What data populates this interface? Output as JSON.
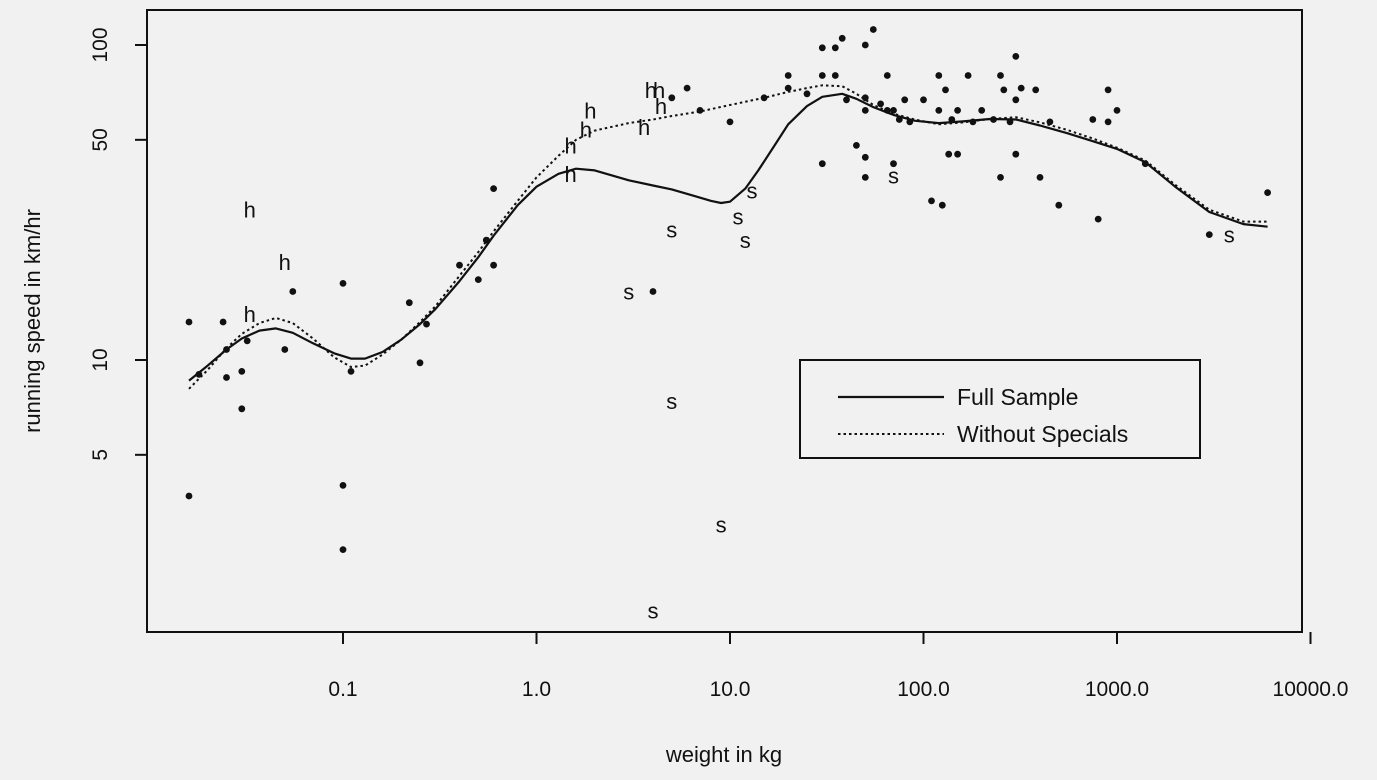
{
  "chart_data": {
    "type": "scatter",
    "title": "",
    "xlabel": "weight in kg",
    "ylabel": "running speed in km/hr",
    "xscale": "log",
    "yscale": "log",
    "xlim": [
      0.01,
      10000
    ],
    "ylim": [
      1.15,
      140
    ],
    "x_ticks": [
      0.1,
      1,
      10,
      100,
      1000,
      10000
    ],
    "x_tick_labels": [
      "0.1",
      "1.0",
      "10.0",
      "100.0",
      "1000.0",
      "10000.0"
    ],
    "y_ticks": [
      5,
      10,
      50,
      100
    ],
    "y_tick_labels": [
      "5",
      "10",
      "50",
      "100"
    ],
    "grid": false,
    "legend_position": "center-right",
    "legend": [
      {
        "label": "Full Sample",
        "style": "solid"
      },
      {
        "label": "Without Specials",
        "style": "dotted"
      }
    ],
    "points": [
      {
        "x": 0.016,
        "y": 13.2
      },
      {
        "x": 0.016,
        "y": 3.7
      },
      {
        "x": 0.018,
        "y": 9.0
      },
      {
        "x": 0.024,
        "y": 13.2
      },
      {
        "x": 0.025,
        "y": 10.8
      },
      {
        "x": 0.025,
        "y": 8.8
      },
      {
        "x": 0.03,
        "y": 9.2
      },
      {
        "x": 0.03,
        "y": 7.0
      },
      {
        "x": 0.032,
        "y": 11.5
      },
      {
        "x": 0.055,
        "y": 16.5
      },
      {
        "x": 0.05,
        "y": 10.8
      },
      {
        "x": 0.1,
        "y": 17.5
      },
      {
        "x": 0.1,
        "y": 4.0
      },
      {
        "x": 0.1,
        "y": 2.5
      },
      {
        "x": 0.11,
        "y": 9.2
      },
      {
        "x": 0.22,
        "y": 15.2
      },
      {
        "x": 0.25,
        "y": 9.8
      },
      {
        "x": 0.27,
        "y": 13.0
      },
      {
        "x": 0.4,
        "y": 20.0
      },
      {
        "x": 0.5,
        "y": 18.0
      },
      {
        "x": 0.55,
        "y": 24.0
      },
      {
        "x": 0.6,
        "y": 20.0
      },
      {
        "x": 0.6,
        "y": 35.0
      },
      {
        "x": 4.0,
        "y": 16.5
      },
      {
        "x": 5.0,
        "y": 68.0
      },
      {
        "x": 6.0,
        "y": 73.0
      },
      {
        "x": 7.0,
        "y": 62.0
      },
      {
        "x": 10.0,
        "y": 57.0
      },
      {
        "x": 15.0,
        "y": 68.0
      },
      {
        "x": 20.0,
        "y": 80.0
      },
      {
        "x": 20.0,
        "y": 73.0
      },
      {
        "x": 25.0,
        "y": 70.0
      },
      {
        "x": 30.0,
        "y": 98.0
      },
      {
        "x": 30.0,
        "y": 80.0
      },
      {
        "x": 30.0,
        "y": 42.0
      },
      {
        "x": 35.0,
        "y": 98.0
      },
      {
        "x": 35.0,
        "y": 80.0
      },
      {
        "x": 38.0,
        "y": 105.0
      },
      {
        "x": 40.0,
        "y": 67.0
      },
      {
        "x": 45.0,
        "y": 48.0
      },
      {
        "x": 50.0,
        "y": 100.0
      },
      {
        "x": 50.0,
        "y": 68.0
      },
      {
        "x": 50.0,
        "y": 62.0
      },
      {
        "x": 50.0,
        "y": 44.0
      },
      {
        "x": 50.0,
        "y": 38.0
      },
      {
        "x": 55.0,
        "y": 112.0
      },
      {
        "x": 60.0,
        "y": 65.0
      },
      {
        "x": 65.0,
        "y": 80.0
      },
      {
        "x": 65.0,
        "y": 62.0
      },
      {
        "x": 70.0,
        "y": 62.0
      },
      {
        "x": 70.0,
        "y": 42.0
      },
      {
        "x": 75.0,
        "y": 58.0
      },
      {
        "x": 80.0,
        "y": 67.0
      },
      {
        "x": 85.0,
        "y": 57.0
      },
      {
        "x": 100.0,
        "y": 67.0
      },
      {
        "x": 110.0,
        "y": 32.0
      },
      {
        "x": 120.0,
        "y": 80.0
      },
      {
        "x": 120.0,
        "y": 62.0
      },
      {
        "x": 125.0,
        "y": 31.0
      },
      {
        "x": 130.0,
        "y": 72.0
      },
      {
        "x": 135.0,
        "y": 45.0
      },
      {
        "x": 140.0,
        "y": 58.0
      },
      {
        "x": 150.0,
        "y": 62.0
      },
      {
        "x": 150.0,
        "y": 45.0
      },
      {
        "x": 170.0,
        "y": 80.0
      },
      {
        "x": 180.0,
        "y": 57.0
      },
      {
        "x": 200.0,
        "y": 62.0
      },
      {
        "x": 230.0,
        "y": 58.0
      },
      {
        "x": 250.0,
        "y": 80.0
      },
      {
        "x": 250.0,
        "y": 38.0
      },
      {
        "x": 260.0,
        "y": 72.0
      },
      {
        "x": 280.0,
        "y": 57.0
      },
      {
        "x": 300.0,
        "y": 92.0
      },
      {
        "x": 300.0,
        "y": 67.0
      },
      {
        "x": 300.0,
        "y": 45.0
      },
      {
        "x": 320.0,
        "y": 73.0
      },
      {
        "x": 380.0,
        "y": 72.0
      },
      {
        "x": 400.0,
        "y": 38.0
      },
      {
        "x": 450.0,
        "y": 57.0
      },
      {
        "x": 500.0,
        "y": 31.0
      },
      {
        "x": 750.0,
        "y": 58.0
      },
      {
        "x": 800.0,
        "y": 28.0
      },
      {
        "x": 900.0,
        "y": 57.0
      },
      {
        "x": 900.0,
        "y": 72.0
      },
      {
        "x": 1000.0,
        "y": 62.0
      },
      {
        "x": 1400.0,
        "y": 42.0
      },
      {
        "x": 3000.0,
        "y": 25.0
      },
      {
        "x": 6000.0,
        "y": 34.0
      }
    ],
    "labeled_points": [
      {
        "marker": "h",
        "x": 0.033,
        "y": 30.0
      },
      {
        "marker": "h",
        "x": 0.05,
        "y": 20.5
      },
      {
        "marker": "h",
        "x": 0.033,
        "y": 14.0
      },
      {
        "marker": "h",
        "x": 1.5,
        "y": 48.0
      },
      {
        "marker": "h",
        "x": 1.5,
        "y": 39.0
      },
      {
        "marker": "h",
        "x": 1.9,
        "y": 62.0
      },
      {
        "marker": "h",
        "x": 1.8,
        "y": 54.0
      },
      {
        "marker": "h",
        "x": 3.6,
        "y": 55.0
      },
      {
        "marker": "h",
        "x": 3.9,
        "y": 72.0
      },
      {
        "marker": "h",
        "x": 4.3,
        "y": 72.0
      },
      {
        "marker": "h",
        "x": 4.4,
        "y": 64.0
      },
      {
        "marker": "s",
        "x": 5.0,
        "y": 26.0
      },
      {
        "marker": "s",
        "x": 3.0,
        "y": 16.5
      },
      {
        "marker": "s",
        "x": 5.0,
        "y": 7.4
      },
      {
        "marker": "s",
        "x": 4.0,
        "y": 1.6
      },
      {
        "marker": "s",
        "x": 9.0,
        "y": 3.0
      },
      {
        "marker": "s",
        "x": 11.0,
        "y": 28.5
      },
      {
        "marker": "s",
        "x": 12.0,
        "y": 24.0
      },
      {
        "marker": "s",
        "x": 13.0,
        "y": 34.5
      },
      {
        "marker": "s",
        "x": 70.0,
        "y": 38.5
      },
      {
        "marker": "s",
        "x": 3800.0,
        "y": 25.0
      }
    ],
    "series": [
      {
        "name": "Full Sample",
        "style": "solid",
        "x": [
          0.016,
          0.02,
          0.025,
          0.03,
          0.037,
          0.045,
          0.055,
          0.07,
          0.09,
          0.11,
          0.13,
          0.16,
          0.2,
          0.25,
          0.3,
          0.4,
          0.5,
          0.6,
          0.8,
          1.0,
          1.3,
          1.6,
          2.0,
          3.0,
          4.0,
          5.0,
          6.5,
          8.0,
          9.0,
          10.0,
          12.0,
          14.0,
          17.0,
          20.0,
          25.0,
          30.0,
          38.0,
          45.0,
          55.0,
          70.0,
          90.0,
          120.0,
          160.0,
          220.0,
          300.0,
          400.0,
          550.0,
          750.0,
          1000.0,
          1400.0,
          2000.0,
          3000.0,
          4500.0,
          6000.0
        ],
        "y": [
          8.6,
          9.6,
          10.8,
          11.7,
          12.4,
          12.6,
          12.2,
          11.3,
          10.5,
          10.1,
          10.1,
          10.6,
          11.6,
          13.0,
          14.5,
          17.8,
          21.2,
          24.8,
          31.0,
          35.5,
          39.0,
          40.5,
          40.0,
          37.2,
          35.8,
          34.8,
          33.2,
          32.0,
          31.5,
          31.8,
          35.0,
          40.0,
          48.0,
          56.0,
          64.0,
          68.5,
          70.0,
          67.5,
          63.5,
          60.0,
          57.5,
          56.5,
          57.2,
          58.2,
          58.0,
          55.5,
          52.5,
          49.5,
          46.8,
          42.5,
          35.5,
          29.5,
          27.0,
          26.5
        ]
      },
      {
        "name": "Without Specials",
        "style": "dotted",
        "x": [
          0.016,
          0.02,
          0.025,
          0.03,
          0.037,
          0.045,
          0.055,
          0.07,
          0.09,
          0.11,
          0.13,
          0.16,
          0.2,
          0.25,
          0.3,
          0.4,
          0.5,
          0.6,
          0.8,
          1.0,
          1.3,
          1.6,
          2.0,
          3.0,
          4.0,
          5.0,
          7.0,
          10.0,
          15.0,
          20.0,
          25.0,
          30.0,
          38.0,
          45.0,
          55.0,
          70.0,
          90.0,
          120.0,
          160.0,
          220.0,
          300.0,
          400.0,
          550.0,
          750.0,
          1000.0,
          1400.0,
          2000.0,
          3000.0,
          4500.0,
          6000.0
        ],
        "y": [
          8.1,
          9.3,
          10.9,
          12.1,
          13.1,
          13.6,
          13.1,
          11.7,
          10.2,
          9.5,
          9.6,
          10.4,
          11.6,
          13.2,
          14.8,
          18.5,
          22.0,
          25.6,
          32.0,
          38.0,
          44.5,
          50.0,
          53.5,
          56.5,
          58.0,
          59.5,
          61.5,
          64.5,
          68.0,
          71.0,
          73.0,
          74.5,
          74.0,
          70.0,
          64.5,
          60.5,
          58.0,
          56.0,
          56.8,
          58.2,
          59.0,
          56.8,
          53.8,
          50.5,
          47.2,
          43.0,
          36.0,
          30.0,
          27.5,
          27.5
        ]
      }
    ]
  }
}
